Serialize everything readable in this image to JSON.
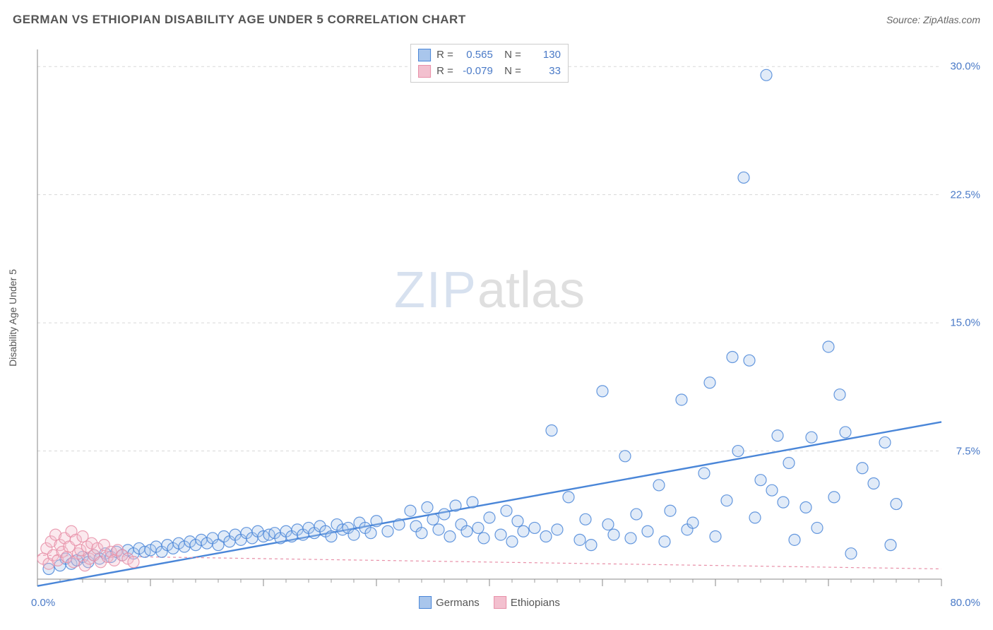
{
  "header": {
    "title": "GERMAN VS ETHIOPIAN DISABILITY AGE UNDER 5 CORRELATION CHART",
    "source": "Source: ZipAtlas.com"
  },
  "chart": {
    "type": "scatter",
    "y_axis_label": "Disability Age Under 5",
    "xlim": [
      0,
      80
    ],
    "ylim": [
      0,
      31
    ],
    "x_ticks_major": [
      0,
      10,
      20,
      30,
      40,
      50,
      60,
      70,
      80
    ],
    "x_ticks_minor_step": 2,
    "y_ticks": [
      0,
      7.5,
      15.0,
      22.5,
      30.0
    ],
    "y_tick_labels": [
      "",
      "7.5%",
      "15.0%",
      "22.5%",
      "30.0%"
    ],
    "x_min_label": "0.0%",
    "x_max_label": "80.0%",
    "grid_color": "#d8d8d8",
    "grid_style": "dashed",
    "axis_color": "#888888",
    "background_color": "#ffffff",
    "marker_radius": 8,
    "marker_fill_opacity": 0.35,
    "marker_stroke_opacity": 0.85,
    "marker_stroke_width": 1.2,
    "series": [
      {
        "name": "Germans",
        "color": "#4a86d8",
        "fill": "#a9c6ec",
        "trend": {
          "x1": 0,
          "y1": -0.4,
          "x2": 80,
          "y2": 9.2,
          "width": 2.4,
          "dash": "none"
        },
        "R": "0.565",
        "N": "130",
        "points": [
          [
            1,
            0.6
          ],
          [
            2,
            0.8
          ],
          [
            2.5,
            1.2
          ],
          [
            3,
            0.9
          ],
          [
            3.5,
            1.1
          ],
          [
            4,
            1.3
          ],
          [
            4.5,
            1.0
          ],
          [
            5,
            1.4
          ],
          [
            5.5,
            1.2
          ],
          [
            6,
            1.5
          ],
          [
            6.5,
            1.3
          ],
          [
            7,
            1.6
          ],
          [
            7.5,
            1.4
          ],
          [
            8,
            1.7
          ],
          [
            8.5,
            1.5
          ],
          [
            9,
            1.8
          ],
          [
            9.5,
            1.6
          ],
          [
            10,
            1.7
          ],
          [
            10.5,
            1.9
          ],
          [
            11,
            1.6
          ],
          [
            11.5,
            2.0
          ],
          [
            12,
            1.8
          ],
          [
            12.5,
            2.1
          ],
          [
            13,
            1.9
          ],
          [
            13.5,
            2.2
          ],
          [
            14,
            2.0
          ],
          [
            14.5,
            2.3
          ],
          [
            15,
            2.1
          ],
          [
            15.5,
            2.4
          ],
          [
            16,
            2.0
          ],
          [
            16.5,
            2.5
          ],
          [
            17,
            2.2
          ],
          [
            17.5,
            2.6
          ],
          [
            18,
            2.3
          ],
          [
            18.5,
            2.7
          ],
          [
            19,
            2.4
          ],
          [
            19.5,
            2.8
          ],
          [
            20,
            2.5
          ],
          [
            20.5,
            2.6
          ],
          [
            21,
            2.7
          ],
          [
            21.5,
            2.4
          ],
          [
            22,
            2.8
          ],
          [
            22.5,
            2.5
          ],
          [
            23,
            2.9
          ],
          [
            23.5,
            2.6
          ],
          [
            24,
            3.0
          ],
          [
            24.5,
            2.7
          ],
          [
            25,
            3.1
          ],
          [
            25.5,
            2.8
          ],
          [
            26,
            2.5
          ],
          [
            26.5,
            3.2
          ],
          [
            27,
            2.9
          ],
          [
            27.5,
            3.0
          ],
          [
            28,
            2.6
          ],
          [
            28.5,
            3.3
          ],
          [
            29,
            3.0
          ],
          [
            29.5,
            2.7
          ],
          [
            30,
            3.4
          ],
          [
            31,
            2.8
          ],
          [
            32,
            3.2
          ],
          [
            33,
            4.0
          ],
          [
            33.5,
            3.1
          ],
          [
            34,
            2.7
          ],
          [
            34.5,
            4.2
          ],
          [
            35,
            3.5
          ],
          [
            35.5,
            2.9
          ],
          [
            36,
            3.8
          ],
          [
            36.5,
            2.5
          ],
          [
            37,
            4.3
          ],
          [
            37.5,
            3.2
          ],
          [
            38,
            2.8
          ],
          [
            38.5,
            4.5
          ],
          [
            39,
            3.0
          ],
          [
            39.5,
            2.4
          ],
          [
            40,
            3.6
          ],
          [
            41,
            2.6
          ],
          [
            41.5,
            4.0
          ],
          [
            42,
            2.2
          ],
          [
            42.5,
            3.4
          ],
          [
            43,
            2.8
          ],
          [
            44,
            3.0
          ],
          [
            45,
            2.5
          ],
          [
            45.5,
            8.7
          ],
          [
            46,
            2.9
          ],
          [
            47,
            4.8
          ],
          [
            48,
            2.3
          ],
          [
            48.5,
            3.5
          ],
          [
            49,
            2.0
          ],
          [
            50,
            11.0
          ],
          [
            50.5,
            3.2
          ],
          [
            51,
            2.6
          ],
          [
            52,
            7.2
          ],
          [
            52.5,
            2.4
          ],
          [
            53,
            3.8
          ],
          [
            54,
            2.8
          ],
          [
            55,
            5.5
          ],
          [
            55.5,
            2.2
          ],
          [
            56,
            4.0
          ],
          [
            57,
            10.5
          ],
          [
            57.5,
            2.9
          ],
          [
            58,
            3.3
          ],
          [
            59,
            6.2
          ],
          [
            59.5,
            11.5
          ],
          [
            60,
            2.5
          ],
          [
            61,
            4.6
          ],
          [
            61.5,
            13.0
          ],
          [
            62,
            7.5
          ],
          [
            62.5,
            23.5
          ],
          [
            63,
            12.8
          ],
          [
            63.5,
            3.6
          ],
          [
            64,
            5.8
          ],
          [
            64.5,
            29.5
          ],
          [
            65,
            5.2
          ],
          [
            65.5,
            8.4
          ],
          [
            66,
            4.5
          ],
          [
            66.5,
            6.8
          ],
          [
            67,
            2.3
          ],
          [
            68,
            4.2
          ],
          [
            68.5,
            8.3
          ],
          [
            69,
            3.0
          ],
          [
            70,
            13.6
          ],
          [
            70.5,
            4.8
          ],
          [
            71,
            10.8
          ],
          [
            71.5,
            8.6
          ],
          [
            72,
            1.5
          ],
          [
            73,
            6.5
          ],
          [
            74,
            5.6
          ],
          [
            75,
            8.0
          ],
          [
            75.5,
            2.0
          ],
          [
            76,
            4.4
          ]
        ]
      },
      {
        "name": "Ethiopians",
        "color": "#e890a8",
        "fill": "#f3c0cf",
        "trend": {
          "x1": 0,
          "y1": 1.4,
          "x2": 80,
          "y2": 0.6,
          "width": 1.2,
          "dash": "4,4"
        },
        "R": "-0.079",
        "N": "33",
        "points": [
          [
            0.5,
            1.2
          ],
          [
            0.8,
            1.8
          ],
          [
            1.0,
            0.9
          ],
          [
            1.2,
            2.2
          ],
          [
            1.4,
            1.4
          ],
          [
            1.6,
            2.6
          ],
          [
            1.8,
            1.1
          ],
          [
            2.0,
            2.0
          ],
          [
            2.2,
            1.6
          ],
          [
            2.4,
            2.4
          ],
          [
            2.6,
            1.3
          ],
          [
            2.8,
            1.9
          ],
          [
            3.0,
            2.8
          ],
          [
            3.2,
            1.0
          ],
          [
            3.4,
            2.3
          ],
          [
            3.6,
            1.5
          ],
          [
            3.8,
            1.7
          ],
          [
            4.0,
            2.5
          ],
          [
            4.2,
            0.8
          ],
          [
            4.4,
            1.9
          ],
          [
            4.6,
            1.2
          ],
          [
            4.8,
            2.1
          ],
          [
            5.0,
            1.4
          ],
          [
            5.3,
            1.8
          ],
          [
            5.6,
            1.0
          ],
          [
            5.9,
            2.0
          ],
          [
            6.2,
            1.3
          ],
          [
            6.5,
            1.6
          ],
          [
            6.8,
            1.1
          ],
          [
            7.1,
            1.7
          ],
          [
            7.5,
            1.4
          ],
          [
            8.0,
            1.2
          ],
          [
            8.5,
            1.0
          ]
        ]
      }
    ],
    "legend_bottom": [
      {
        "label": "Germans",
        "color": "#4a86d8",
        "fill": "#a9c6ec"
      },
      {
        "label": "Ethiopians",
        "color": "#e890a8",
        "fill": "#f3c0cf"
      }
    ],
    "watermark": {
      "zip": "ZIP",
      "atlas": "atlas"
    }
  }
}
